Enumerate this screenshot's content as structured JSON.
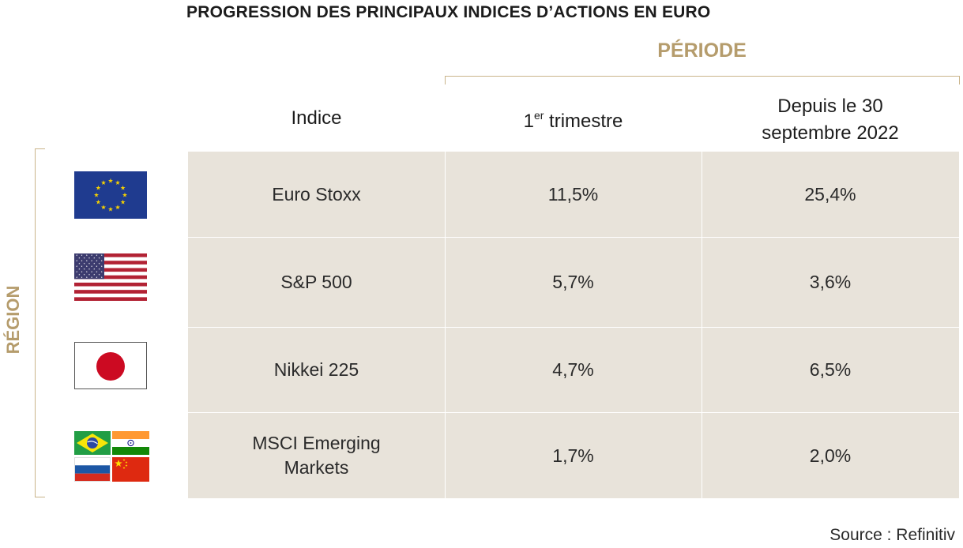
{
  "title": "PROGRESSION DES PRINCIPAUX INDICES D’ACTIONS EN EURO",
  "periode_label": "PÉRIODE",
  "region_label": "RÉGION",
  "headers": {
    "indice": "Indice",
    "q1_base": "1",
    "q1_sup": "er",
    "q1_rest": " trimestre",
    "since_line1": "Depuis le 30",
    "since_line2": "septembre 2022"
  },
  "source": "Source : Refinitiv",
  "colors": {
    "accent": "#b59c6c",
    "table_bg": "#e8e3da",
    "eu_blue": "#1f3b8f",
    "us_red": "#b22234",
    "us_blue": "#3c3b6e",
    "jp_red": "#cc0a22"
  },
  "chart_data": {
    "type": "table",
    "columns": [
      "Indice",
      "1er trimestre",
      "Depuis le 30 septembre 2022"
    ],
    "rows": [
      {
        "flag_icons": [
          "eu-flag-icon"
        ],
        "indice": "Euro Stoxx",
        "q1": "11,5%",
        "since": "25,4%",
        "q1_value": 11.5,
        "since_value": 25.4
      },
      {
        "flag_icons": [
          "us-flag-icon"
        ],
        "indice": "S&P 500",
        "q1": "5,7%",
        "since": "3,6%",
        "q1_value": 5.7,
        "since_value": 3.6
      },
      {
        "flag_icons": [
          "japan-flag-icon"
        ],
        "indice": "Nikkei 225",
        "q1": "4,7%",
        "since": "6,5%",
        "q1_value": 4.7,
        "since_value": 6.5
      },
      {
        "flag_icons": [
          "brazil-flag-icon",
          "india-flag-icon",
          "russia-flag-icon",
          "china-flag-icon"
        ],
        "indice_line1": "MSCI Emerging",
        "indice_line2": "Markets",
        "q1": "1,7%",
        "since": "2,0%",
        "q1_value": 1.7,
        "since_value": 2.0
      }
    ]
  }
}
